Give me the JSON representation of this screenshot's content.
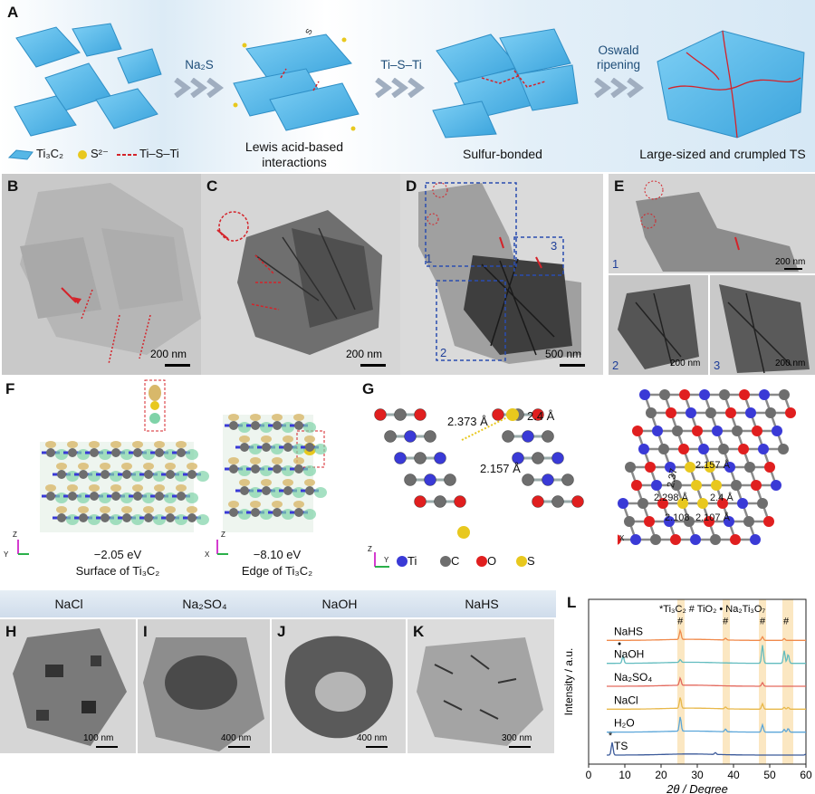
{
  "panels": {
    "A": {
      "label": "A",
      "arrow1": "Na₂S",
      "arrow2": "Ti–S–Ti",
      "arrow3_line1": "Oswald",
      "arrow3_line2": "ripening",
      "legend_ti3c2": "Ti₃C₂",
      "legend_s": "S²⁻",
      "legend_bond": "Ti–S–Ti",
      "cap2_line1": "Lewis acid-based",
      "cap2_line2": "interactions",
      "cap3": "Sulfur-bonded",
      "cap4": "Large-sized and crumpled TS",
      "sheet_label": "S"
    },
    "B": {
      "label": "B",
      "scale": "200 nm"
    },
    "C": {
      "label": "C",
      "scale": "200 nm"
    },
    "D": {
      "label": "D",
      "scale": "500 nm",
      "box1": "1",
      "box2": "2",
      "box3": "3"
    },
    "E": {
      "label": "E",
      "scale1": "200 nm",
      "scale2": "200 nm",
      "scale3": "200 nm",
      "sub1": "1",
      "sub2": "2",
      "sub3": "3"
    },
    "F": {
      "label": "F",
      "energy1": "−2.05 eV",
      "site1": "Surface of Ti₃C₂",
      "energy2": "−8.10 eV",
      "site2": "Edge of Ti₃C₂",
      "axis_z": "Z",
      "axis_y": "Y",
      "axis_x": "X"
    },
    "G": {
      "label": "G",
      "d1": "2.373 Å",
      "d2": "2.4 Å",
      "d3": "2.157 Å",
      "d4": "2.157 Å",
      "d5": "2.37",
      "d6": "2.298 Å",
      "d7": "2.4 Å",
      "d8": "2.108",
      "d9": "2.107 Å",
      "legend_ti": "Ti",
      "legend_c": "C",
      "legend_o": "O",
      "legend_s": "S",
      "axis_z": "Z",
      "axis_y": "Y",
      "axis_x": "X"
    },
    "H": {
      "label": "H",
      "header": "NaCl",
      "scale": "100 nm"
    },
    "I": {
      "label": "I",
      "header": "Na₂SO₄",
      "scale": "400 nm"
    },
    "J": {
      "label": "J",
      "header": "NaOH",
      "scale": "400 nm"
    },
    "K": {
      "label": "K",
      "header": "NaHS",
      "scale": "300 nm"
    },
    "L": {
      "label": "L"
    }
  },
  "colors": {
    "ti": "#3a3ad6",
    "c": "#6e6e6e",
    "o": "#e01f1f",
    "s": "#e8c81e",
    "sheet": "#56b7e6",
    "box": "#2a4db0",
    "dash": "#d4232a",
    "band": "#fbe7c2"
  },
  "chart_data": {
    "type": "line",
    "xlabel": "2θ / Degree",
    "ylabel": "Intensity / a.u.",
    "xlim": [
      0,
      60
    ],
    "xticks": [
      0,
      10,
      20,
      30,
      40,
      50,
      60
    ],
    "legend": [
      "*Ti₃C₂",
      "# TiO₂",
      "• Na₂Ti₃O₇"
    ],
    "highlight_bands": [
      [
        24.5,
        26.5
      ],
      [
        37,
        39
      ],
      [
        47,
        49
      ],
      [
        53.5,
        56.5
      ]
    ],
    "series": [
      {
        "name": "TS",
        "color": "#3b5a9a",
        "peaks": [
          [
            6.5,
            14
          ],
          [
            35,
            2
          ],
          [
            60,
            1
          ]
        ]
      },
      {
        "name": "H₂O",
        "color": "#5ba6d9",
        "peaks": [
          [
            25.3,
            16
          ],
          [
            37.8,
            3
          ],
          [
            48,
            8
          ],
          [
            54,
            3
          ],
          [
            55.1,
            4
          ]
        ]
      },
      {
        "name": "NaCl",
        "color": "#e8b84a",
        "peaks": [
          [
            25.3,
            12
          ],
          [
            37.8,
            2
          ],
          [
            48,
            6
          ],
          [
            54,
            2
          ],
          [
            55.1,
            2
          ]
        ]
      },
      {
        "name": "Na₂SO₄",
        "color": "#e46a5e",
        "peaks": [
          [
            25.3,
            8
          ],
          [
            48,
            4
          ]
        ]
      },
      {
        "name": "NaOH",
        "color": "#62bcbf",
        "peaks": [
          [
            9.5,
            8
          ],
          [
            25.3,
            3
          ],
          [
            48,
            20
          ],
          [
            54,
            14
          ],
          [
            55.1,
            10
          ]
        ]
      },
      {
        "name": "NaHS",
        "color": "#f08a4b",
        "peaks": [
          [
            25.3,
            10
          ],
          [
            37.8,
            2
          ],
          [
            48,
            4
          ],
          [
            54,
            2
          ]
        ]
      }
    ],
    "markers": [
      {
        "symbol": "#",
        "x": 25.3,
        "series": "NaHS"
      },
      {
        "symbol": "#",
        "x": 37.8,
        "series": "NaHS"
      },
      {
        "symbol": "#",
        "x": 48,
        "series": "NaHS"
      },
      {
        "symbol": "#",
        "x": 54.5,
        "series": "NaHS"
      },
      {
        "symbol": "•",
        "x": 8.5,
        "series": "NaOH"
      },
      {
        "symbol": "*",
        "x": 6.0,
        "series": "TS"
      }
    ]
  }
}
